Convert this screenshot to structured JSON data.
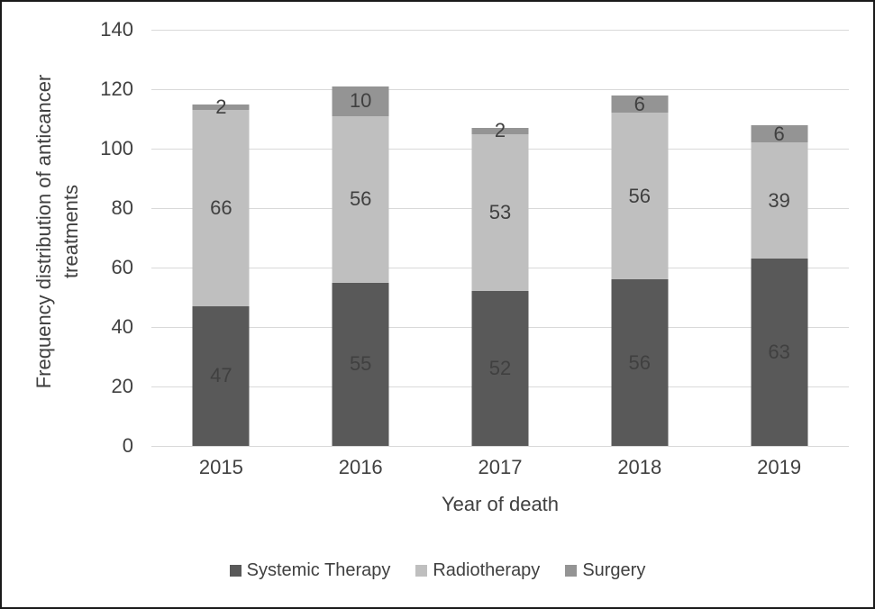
{
  "figure": {
    "background": "#ffffff",
    "border_color": "#1a1a1a",
    "text_color": "#404040",
    "gridline_color": "#d9d9d9"
  },
  "chart_data": {
    "type": "bar",
    "stacked": true,
    "title": "",
    "categories": [
      "2015",
      "2016",
      "2017",
      "2018",
      "2019"
    ],
    "series": [
      {
        "name": "Systemic Therapy",
        "color": "#595959",
        "values": [
          47,
          55,
          52,
          56,
          63
        ]
      },
      {
        "name": "Radiotherapy",
        "color": "#bfbfbf",
        "values": [
          66,
          56,
          53,
          56,
          39
        ]
      },
      {
        "name": "Surgery",
        "color": "#949494",
        "values": [
          2,
          10,
          2,
          6,
          6
        ]
      }
    ],
    "stack_totals": [
      115,
      121,
      107,
      118,
      108
    ],
    "xlabel": "Year of death",
    "ylabel": "Frequency distribution of anticancer treatments",
    "ylabel_lines": [
      "Frequency distribution of anticancer",
      "treatments"
    ],
    "ylim": [
      0,
      140
    ],
    "yticks": [
      0,
      20,
      40,
      60,
      80,
      100,
      120,
      140
    ],
    "grid": true,
    "data_labels": true,
    "legend_position": "bottom"
  }
}
